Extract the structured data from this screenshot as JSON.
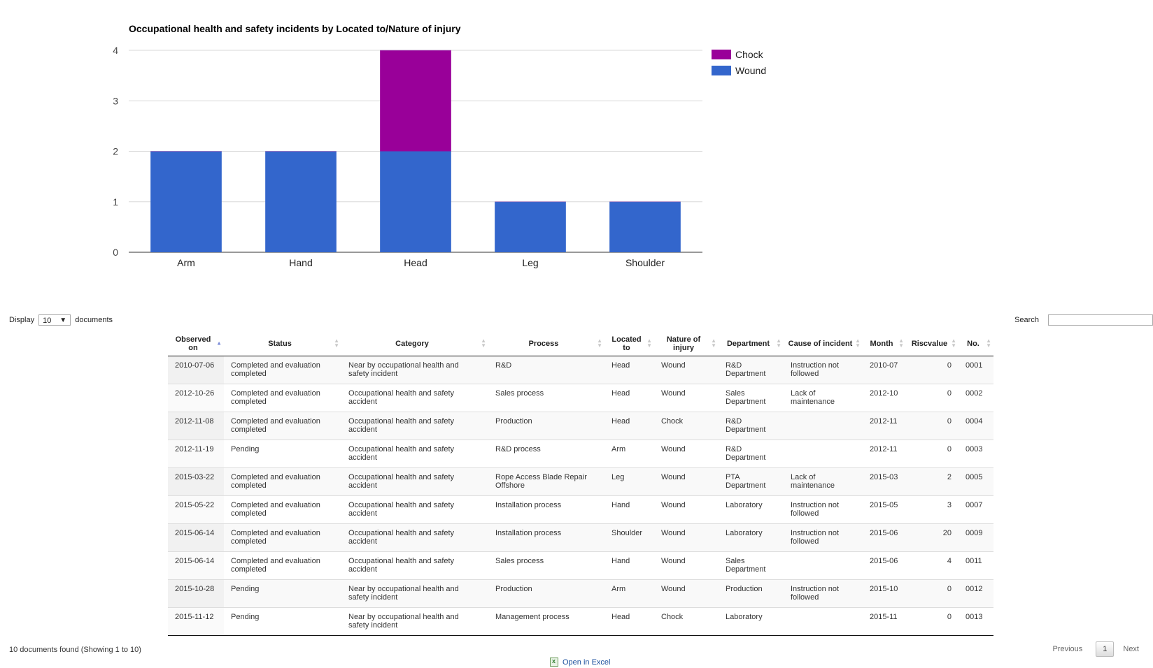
{
  "chart_data": {
    "type": "bar",
    "stacked": true,
    "title": "Occupational health and safety incidents by Located to/Nature of injury",
    "categories": [
      "Arm",
      "Hand",
      "Head",
      "Leg",
      "Shoulder"
    ],
    "series": [
      {
        "name": "Wound",
        "color": "#3366cc",
        "values": [
          2,
          2,
          2,
          1,
          1
        ]
      },
      {
        "name": "Chock",
        "color": "#990099",
        "values": [
          0,
          0,
          2,
          0,
          0
        ]
      }
    ],
    "legend_order": [
      "Chock",
      "Wound"
    ],
    "yticks": [
      0,
      1,
      2,
      3,
      4
    ],
    "ylim": [
      0,
      4
    ],
    "grid": true,
    "legend": "right"
  },
  "controls": {
    "display_label": "Display",
    "display_value": "10",
    "display_suffix": "documents",
    "search_label": "Search",
    "search_value": ""
  },
  "table": {
    "columns": [
      "Observed on",
      "Status",
      "Category",
      "Process",
      "Located to",
      "Nature of injury",
      "Department",
      "Cause of incident",
      "Month",
      "Riscvalue",
      "No."
    ],
    "rows": [
      [
        "2010-07-06",
        "Completed and evaluation completed",
        "Near by occupational health and safety incident",
        "R&D",
        "Head",
        "Wound",
        "R&D Department",
        "Instruction not followed",
        "2010-07",
        "0",
        "0001"
      ],
      [
        "2012-10-26",
        "Completed and evaluation completed",
        "Occupational health and safety accident",
        "Sales process",
        "Head",
        "Wound",
        "Sales Department",
        "Lack of maintenance",
        "2012-10",
        "0",
        "0002"
      ],
      [
        "2012-11-08",
        "Completed and evaluation completed",
        "Occupational health and safety accident",
        "Production",
        "Head",
        "Chock",
        "R&D Department",
        "",
        "2012-11",
        "0",
        "0004"
      ],
      [
        "2012-11-19",
        "Pending",
        "Occupational health and safety accident",
        "R&D process",
        "Arm",
        "Wound",
        "R&D Department",
        "",
        "2012-11",
        "0",
        "0003"
      ],
      [
        "2015-03-22",
        "Completed and evaluation completed",
        "Occupational health and safety accident",
        "Rope Access Blade Repair Offshore",
        "Leg",
        "Wound",
        "PTA Department",
        "Lack of maintenance",
        "2015-03",
        "2",
        "0005"
      ],
      [
        "2015-05-22",
        "Completed and evaluation completed",
        "Occupational health and safety accident",
        "Installation process",
        "Hand",
        "Wound",
        "Laboratory",
        "Instruction not followed",
        "2015-05",
        "3",
        "0007"
      ],
      [
        "2015-06-14",
        "Completed and evaluation completed",
        "Occupational health and safety accident",
        "Installation process",
        "Shoulder",
        "Wound",
        "Laboratory",
        "Instruction not followed",
        "2015-06",
        "20",
        "0009"
      ],
      [
        "2015-06-14",
        "Completed and evaluation completed",
        "Occupational health and safety accident",
        "Sales process",
        "Hand",
        "Wound",
        "Sales Department",
        "",
        "2015-06",
        "4",
        "0011"
      ],
      [
        "2015-10-28",
        "Pending",
        "Near by occupational health and safety incident",
        "Production",
        "Arm",
        "Wound",
        "Production",
        "Instruction not followed",
        "2015-10",
        "0",
        "0012"
      ],
      [
        "2015-11-12",
        "Pending",
        "Near by occupational health and safety incident",
        "Management process",
        "Head",
        "Chock",
        "Laboratory",
        "",
        "2015-11",
        "0",
        "0013"
      ]
    ]
  },
  "footer": {
    "found_text": "10 documents found (Showing 1 to 10)",
    "previous_label": "Previous",
    "page_label": "1",
    "next_label": "Next",
    "excel_label": "Open in Excel"
  }
}
